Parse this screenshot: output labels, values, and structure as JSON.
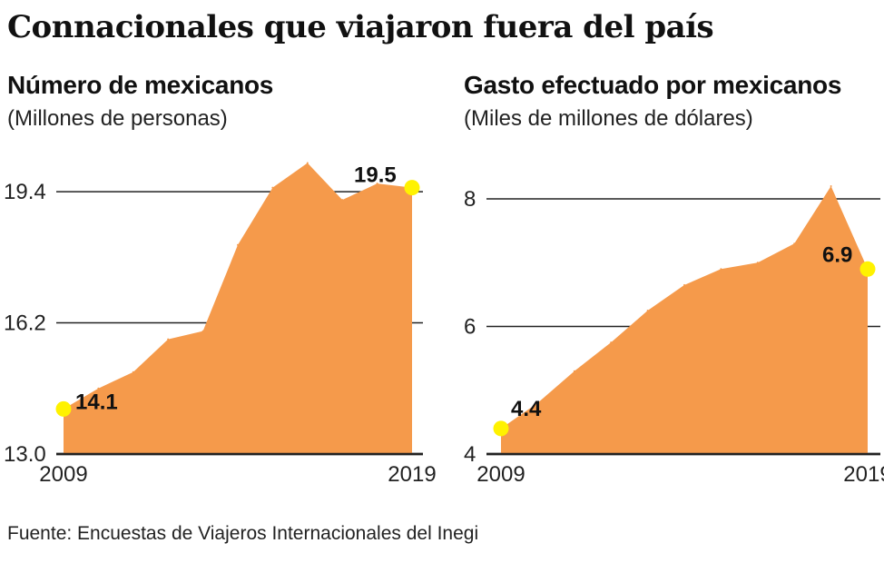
{
  "title": "Connacionales que viajaron fuera del país",
  "source": "Fuente: Encuestas de Viajeros Internacionales del Inegi",
  "colors": {
    "area": "#f59a4b",
    "marker": "#fff200",
    "grid": "#222222",
    "text": "#111111"
  },
  "chart_data": [
    {
      "type": "area",
      "title": "Número de mexicanos",
      "subtitle": "(Millones de personas)",
      "x": [
        2009,
        2010,
        2011,
        2012,
        2013,
        2014,
        2015,
        2016,
        2017,
        2018,
        2019
      ],
      "y": [
        14.1,
        14.6,
        15.0,
        15.8,
        16.0,
        18.1,
        19.5,
        20.1,
        19.2,
        19.6,
        19.5
      ],
      "xticks": [
        "2009",
        "2019"
      ],
      "yticks": [
        13.0,
        16.2,
        19.4
      ],
      "ytick_labels": [
        "13.0",
        "16.2",
        "19.4"
      ],
      "ylim": [
        13.0,
        20.2
      ],
      "annotations": [
        {
          "x": 2009,
          "label": "14.1"
        },
        {
          "x": 2019,
          "label": "19.5"
        }
      ],
      "grid": true
    },
    {
      "type": "area",
      "title": "Gasto efectuado por mexicanos",
      "subtitle": "(Miles de millones de dólares)",
      "x": [
        2009,
        2010,
        2011,
        2012,
        2013,
        2014,
        2015,
        2016,
        2017,
        2018,
        2019
      ],
      "y": [
        4.4,
        4.8,
        5.3,
        5.75,
        6.25,
        6.65,
        6.9,
        7.0,
        7.3,
        8.2,
        6.9
      ],
      "xticks": [
        "2009",
        "2019"
      ],
      "yticks": [
        4,
        6,
        8
      ],
      "ytick_labels": [
        "4",
        "6",
        "8"
      ],
      "ylim": [
        4.0,
        8.2
      ],
      "annotations": [
        {
          "x": 2009,
          "label": "4.4"
        },
        {
          "x": 2019,
          "label": "6.9"
        }
      ],
      "grid": true
    }
  ]
}
